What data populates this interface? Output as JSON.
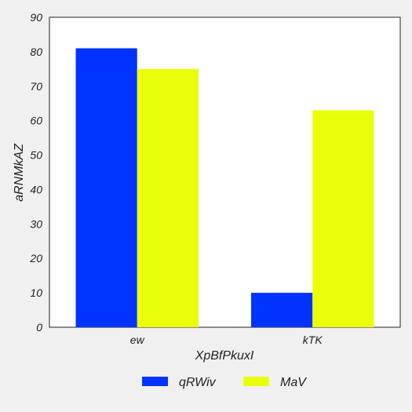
{
  "chart_data": {
    "type": "bar",
    "categories": [
      "ew",
      "kTK"
    ],
    "series": [
      {
        "name": "qRWiv",
        "values": [
          81,
          10
        ],
        "color": "#0033ff"
      },
      {
        "name": "MaV",
        "values": [
          75,
          63
        ],
        "color": "#eaff0a"
      }
    ],
    "xlabel": "XpBfPkuxI",
    "ylabel": "aRNMkAZ",
    "ylim": [
      0,
      90
    ],
    "yticks": [
      0,
      10,
      20,
      30,
      40,
      50,
      60,
      70,
      80,
      90
    ],
    "grid": false,
    "legend_position": "bottom-center"
  }
}
